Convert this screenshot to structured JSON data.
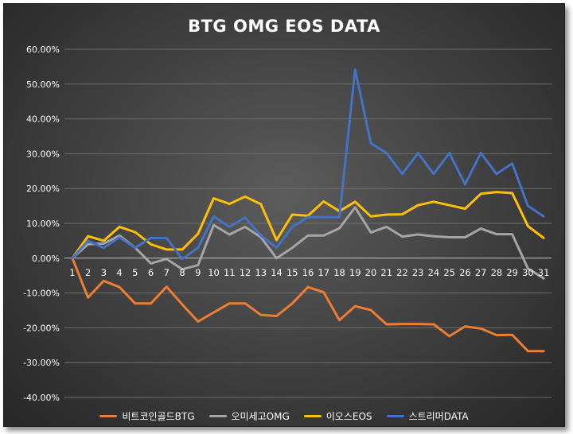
{
  "chart_data": {
    "type": "line",
    "title": "BTG OMG EOS DATA",
    "xlabel": "",
    "ylabel": "",
    "x": [
      1,
      2,
      3,
      4,
      5,
      6,
      7,
      8,
      9,
      10,
      11,
      12,
      13,
      14,
      15,
      16,
      17,
      18,
      19,
      20,
      21,
      22,
      23,
      24,
      25,
      26,
      27,
      28,
      29,
      30,
      31
    ],
    "x_tick_labels": [
      "1",
      "2",
      "3",
      "4",
      "5",
      "6",
      "7",
      "8",
      "9",
      "10",
      "11",
      "12",
      "13",
      "14",
      "15",
      "16",
      "17",
      "18",
      "19",
      "20",
      "21",
      "22",
      "23",
      "24",
      "25",
      "26",
      "27",
      "28",
      "29",
      "30",
      "31"
    ],
    "ylim": [
      -40,
      60
    ],
    "y_ticks": [
      60,
      50,
      40,
      30,
      20,
      10,
      0,
      -10,
      -20,
      -30,
      -40
    ],
    "y_tick_labels": [
      "60.00%",
      "50.00%",
      "40.00%",
      "30.00%",
      "20.00%",
      "10.00%",
      "0.00%",
      "-10.00%",
      "-20.00%",
      "-30.00%",
      "-40.00%"
    ],
    "grid": true,
    "legend_position": "bottom",
    "series": [
      {
        "name": "비트코인골드BTG",
        "color": "#ed7d31",
        "values": [
          0,
          -11.3,
          -6.5,
          -8.3,
          -13,
          -13,
          -8.2,
          -13.3,
          -18.2,
          -15.6,
          -13,
          -13,
          -16.3,
          -16.6,
          -13,
          -8.3,
          -9.8,
          -17.8,
          -13.8,
          -14.9,
          -19,
          -18.9,
          -18.9,
          -19,
          -22.4,
          -19.6,
          -20.2,
          -22.1,
          -22,
          -26.7,
          -26.7
        ]
      },
      {
        "name": "오미세고OMG",
        "color": "#a5a5a5",
        "values": [
          0,
          4,
          4.2,
          6.5,
          3,
          -1.5,
          -0.2,
          -3.2,
          -2,
          9.5,
          6.8,
          9,
          6,
          0,
          3,
          6.5,
          6.5,
          8.6,
          14.6,
          7.4,
          9,
          6.2,
          6.8,
          6.3,
          6,
          6,
          8.5,
          6.9,
          6.9,
          -3,
          -5.8
        ]
      },
      {
        "name": "이오스EOS",
        "color": "#ffc000",
        "values": [
          0,
          6.3,
          5,
          9,
          7.5,
          4,
          2.5,
          2.5,
          7,
          17.2,
          15.6,
          17.7,
          15.5,
          5.2,
          12.5,
          12.2,
          16.3,
          13.5,
          16.2,
          12,
          12.5,
          12.6,
          15.2,
          16.2,
          15.2,
          14.2,
          18.5,
          19,
          18.7,
          9.2,
          5.8
        ]
      },
      {
        "name": "스트리머DATA",
        "color": "#4472c4",
        "values": [
          0,
          5,
          3,
          6,
          3,
          5.8,
          5.8,
          -0.2,
          3,
          12,
          9,
          11.7,
          6.5,
          3,
          9,
          11.8,
          11.8,
          11.8,
          54.2,
          33,
          30.2,
          24.2,
          30.2,
          24.2,
          30.2,
          21.2,
          30.2,
          24.2,
          27.2,
          15,
          12
        ]
      }
    ]
  }
}
